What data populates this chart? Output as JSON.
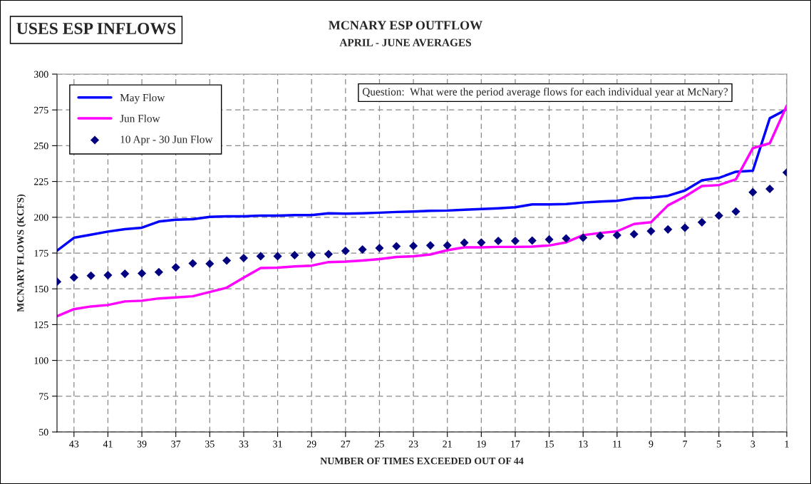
{
  "chart_data": {
    "type": "line",
    "title": "MCNARY ESP OUTFLOW",
    "subtitle": "APRIL - JUNE AVERAGES",
    "xlabel": "NUMBER OF TIMES EXCEEDED OUT OF 44",
    "ylabel": "MCNARY FLOWS (KCFS)",
    "annotations": [
      "USES ESP INFLOWS",
      "Question:  What were the period average flows for each individual year at McNary?"
    ],
    "x": [
      44,
      43,
      42,
      41,
      40,
      39,
      38,
      37,
      36,
      35,
      34,
      33,
      32,
      31,
      30,
      29,
      28,
      27,
      26,
      25,
      24,
      23,
      22,
      21,
      20,
      19,
      18,
      17,
      16,
      15,
      14,
      13,
      12,
      11,
      10,
      9,
      8,
      7,
      6,
      5,
      4,
      3,
      2,
      1
    ],
    "series": [
      {
        "name": "May Flow",
        "color": "#0000ff",
        "values": [
          176.7,
          185.7,
          187.8,
          190,
          191.7,
          192.7,
          197,
          198.3,
          198.7,
          200.3,
          200.7,
          200.7,
          201.2,
          201.2,
          201.5,
          201.5,
          202.8,
          202.5,
          202.8,
          203.2,
          203.7,
          204,
          204.5,
          204.7,
          205.3,
          205.7,
          206.3,
          207,
          209,
          209,
          209.2,
          210.3,
          211,
          211.5,
          213.3,
          213.7,
          215,
          218.7,
          225.8,
          227.5,
          231.8,
          232.5,
          269.2,
          275.5
        ]
      },
      {
        "name": "Jun Flow",
        "color": "#ff00ff",
        "values": [
          130.8,
          135.8,
          137.7,
          138.7,
          141.2,
          141.7,
          143.3,
          144,
          144.8,
          147.8,
          150.8,
          157.8,
          164.5,
          164.8,
          165.7,
          166.2,
          168.7,
          169,
          169.8,
          170.8,
          172.3,
          172.8,
          174,
          177,
          179,
          179,
          179.3,
          179.3,
          179.5,
          180.3,
          182.5,
          187.5,
          189,
          190.2,
          195.3,
          196.5,
          208.3,
          214.5,
          221.8,
          222.5,
          226.5,
          248.3,
          251.7,
          278
        ]
      },
      {
        "name": "10 Apr - 30 Jun Flow",
        "type": "scatter",
        "marker": "diamond",
        "color": "#000080",
        "values": [
          155,
          158,
          159.2,
          159.5,
          160.5,
          160.8,
          161.7,
          165,
          167.8,
          167.5,
          169.8,
          171.5,
          172.8,
          172.8,
          173.5,
          173.7,
          174.2,
          176.5,
          177.5,
          178.5,
          179.7,
          180,
          180.3,
          180.3,
          182.2,
          182.3,
          183.5,
          183.5,
          183.7,
          184.5,
          185.2,
          185.7,
          187,
          187.5,
          188.2,
          190.3,
          191.5,
          192.7,
          196.5,
          201.2,
          204,
          217.5,
          219.8,
          231.3
        ]
      }
    ],
    "xlim": [
      44,
      1
    ],
    "xticks": [
      43,
      41,
      39,
      37,
      35,
      33,
      31,
      29,
      27,
      25,
      23,
      21,
      19,
      17,
      15,
      13,
      11,
      9,
      7,
      5,
      3,
      1
    ],
    "ylim": [
      50,
      300
    ],
    "yticks": [
      50,
      75,
      100,
      125,
      150,
      175,
      200,
      225,
      250,
      275,
      300
    ],
    "grid": true,
    "legend": "top left"
  }
}
